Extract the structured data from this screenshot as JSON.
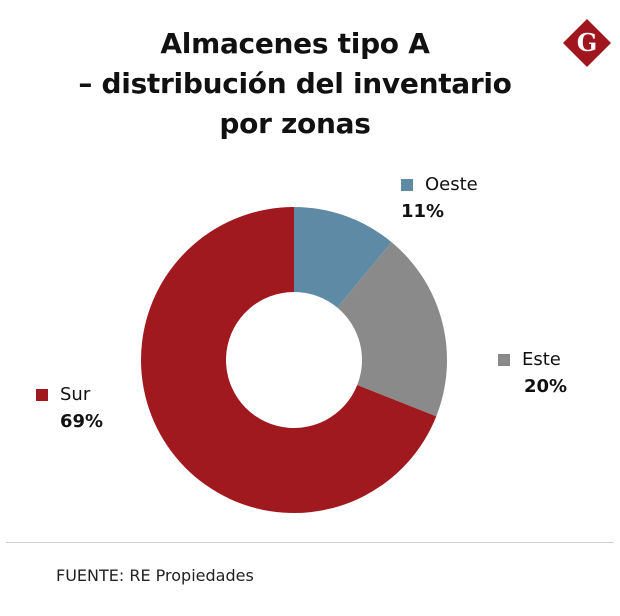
{
  "header": {
    "title_lines": [
      "Almacenes tipo A",
      "– distribución del inventario",
      "por zonas"
    ]
  },
  "logo": {
    "letter": "G",
    "color": "#a0161e"
  },
  "chart_data": {
    "type": "pie",
    "donut": true,
    "categories": [
      "Oeste",
      "Este",
      "Sur"
    ],
    "values": [
      11,
      20,
      69
    ],
    "labels": [
      "11%",
      "20%",
      "69%"
    ],
    "colors": [
      "#5f8aa6",
      "#8a8a8a",
      "#a0191f"
    ]
  },
  "footer": {
    "source": "FUENTE: RE Propiedades"
  }
}
